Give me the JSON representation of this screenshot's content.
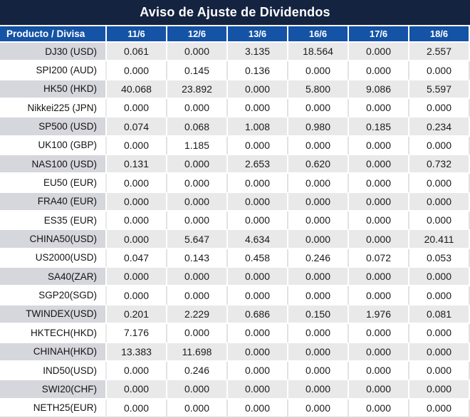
{
  "title": "Aviso de Ajuste de Dividendos",
  "chart_data": {
    "type": "table",
    "title": "Aviso de Ajuste de Dividendos",
    "columns": [
      "Producto / Divisa",
      "11/6",
      "12/6",
      "13/6",
      "16/6",
      "17/6",
      "18/6"
    ],
    "rows": [
      [
        "DJ30 (USD)",
        "0.061",
        "0.000",
        "3.135",
        "18.564",
        "0.000",
        "2.557"
      ],
      [
        "SPI200 (AUD)",
        "0.000",
        "0.145",
        "0.136",
        "0.000",
        "0.000",
        "0.000"
      ],
      [
        "HK50 (HKD)",
        "40.068",
        "23.892",
        "0.000",
        "5.800",
        "9.086",
        "5.597"
      ],
      [
        "Nikkei225 (JPN)",
        "0.000",
        "0.000",
        "0.000",
        "0.000",
        "0.000",
        "0.000"
      ],
      [
        "SP500 (USD)",
        "0.074",
        "0.068",
        "1.008",
        "0.980",
        "0.185",
        "0.234"
      ],
      [
        "UK100 (GBP)",
        "0.000",
        "1.185",
        "0.000",
        "0.000",
        "0.000",
        "0.000"
      ],
      [
        "NAS100 (USD)",
        "0.131",
        "0.000",
        "2.653",
        "0.620",
        "0.000",
        "0.732"
      ],
      [
        "EU50 (EUR)",
        "0.000",
        "0.000",
        "0.000",
        "0.000",
        "0.000",
        "0.000"
      ],
      [
        "FRA40 (EUR)",
        "0.000",
        "0.000",
        "0.000",
        "0.000",
        "0.000",
        "0.000"
      ],
      [
        "ES35 (EUR)",
        "0.000",
        "0.000",
        "0.000",
        "0.000",
        "0.000",
        "0.000"
      ],
      [
        "CHINA50(USD)",
        "0.000",
        "5.647",
        "4.634",
        "0.000",
        "0.000",
        "20.411"
      ],
      [
        "US2000(USD)",
        "0.047",
        "0.143",
        "0.458",
        "0.246",
        "0.072",
        "0.053"
      ],
      [
        "SA40(ZAR)",
        "0.000",
        "0.000",
        "0.000",
        "0.000",
        "0.000",
        "0.000"
      ],
      [
        "SGP20(SGD)",
        "0.000",
        "0.000",
        "0.000",
        "0.000",
        "0.000",
        "0.000"
      ],
      [
        "TWINDEX(USD)",
        "0.201",
        "2.229",
        "0.686",
        "0.150",
        "1.976",
        "0.081"
      ],
      [
        "HKTECH(HKD)",
        "7.176",
        "0.000",
        "0.000",
        "0.000",
        "0.000",
        "0.000"
      ],
      [
        "CHINAH(HKD)",
        "13.383",
        "11.698",
        "0.000",
        "0.000",
        "0.000",
        "0.000"
      ],
      [
        "IND50(USD)",
        "0.000",
        "0.246",
        "0.000",
        "0.000",
        "0.000",
        "0.000"
      ],
      [
        "SWI20(CHF)",
        "0.000",
        "0.000",
        "0.000",
        "0.000",
        "0.000",
        "0.000"
      ],
      [
        "NETH25(EUR)",
        "0.000",
        "0.000",
        "0.000",
        "0.000",
        "0.000",
        "0.000"
      ]
    ],
    "layout_hints": {
      "zero_value_string": "0.000",
      "nonzero_values_highlighted_red": true,
      "striped_rows": "odd rows gray, even rows white"
    }
  },
  "colors": {
    "title_bg": "#142340",
    "header_bg": "#1453a5",
    "stripe_product_bg": "#d6d6dd",
    "stripe_value_bg": "#e9e9e9",
    "zero_text": "#1a1a1a",
    "nonzero_text": "#fb0707"
  }
}
